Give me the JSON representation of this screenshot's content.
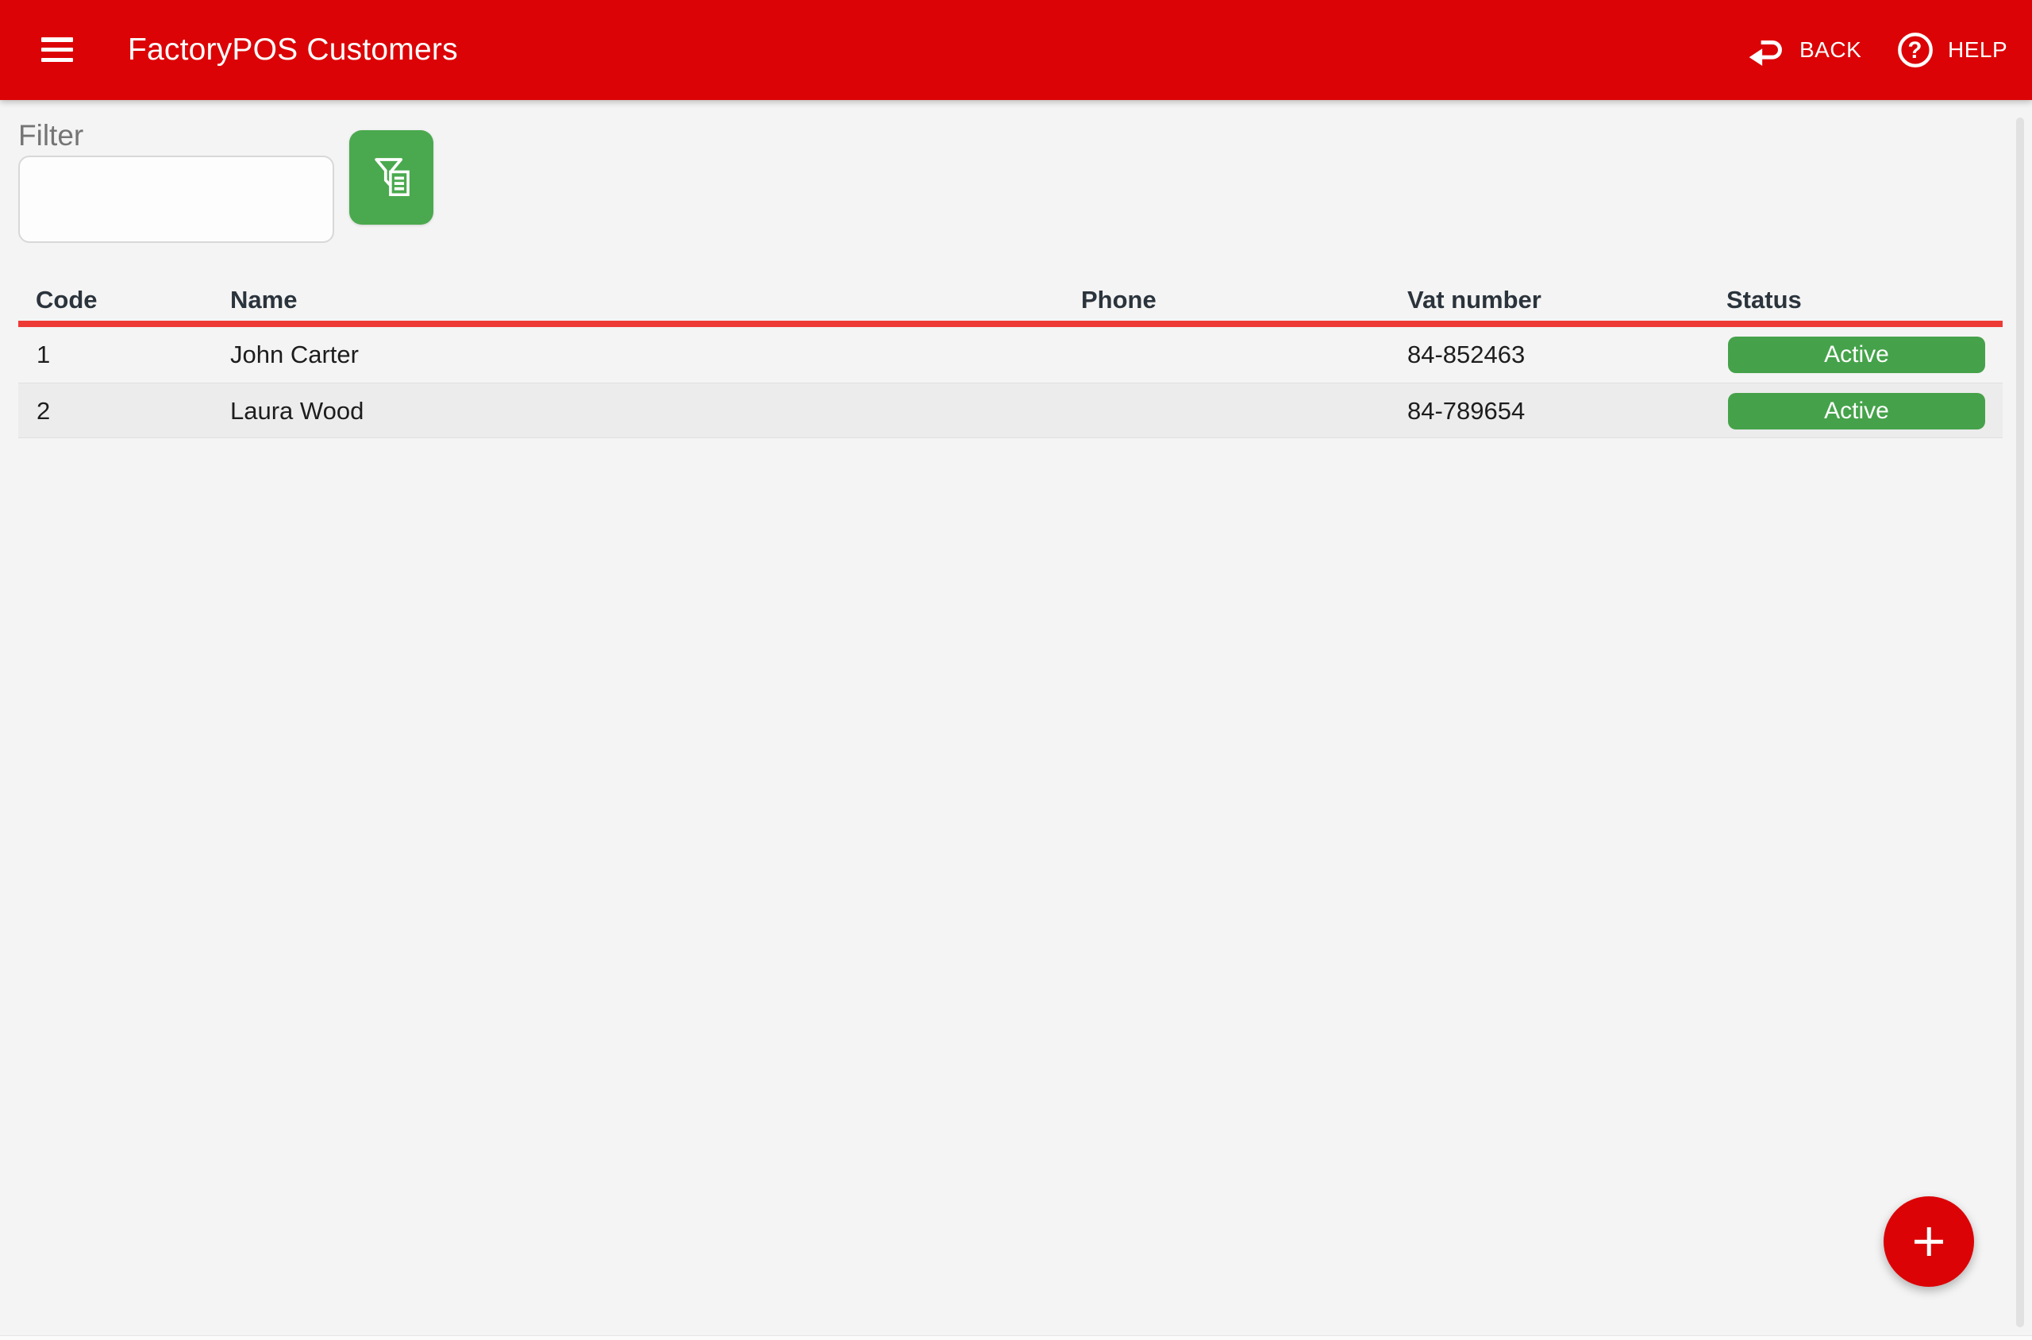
{
  "header": {
    "title": "FactoryPOS Customers",
    "back": {
      "label": "BACK"
    },
    "help": {
      "label": "HELP"
    }
  },
  "filter": {
    "label": "Filter",
    "value": "",
    "placeholder": ""
  },
  "table": {
    "columns": [
      "Code",
      "Name",
      "Phone",
      "Vat number",
      "Status"
    ],
    "rows": [
      {
        "code": "1",
        "name": "John Carter",
        "phone": "",
        "vat_number": "84-852463",
        "status": "Active"
      },
      {
        "code": "2",
        "name": "Laura Wood",
        "phone": "",
        "vat_number": "84-789654",
        "status": "Active"
      }
    ]
  },
  "fab": {
    "icon": "plus"
  },
  "colors": {
    "header_red": "#dc0306",
    "accent_red_line": "#ee3a34",
    "green_button": "#4aa94e",
    "badge_green": "#45a24a",
    "page_bg": "#f4f4f4",
    "row_alt_bg": "#ececec"
  }
}
